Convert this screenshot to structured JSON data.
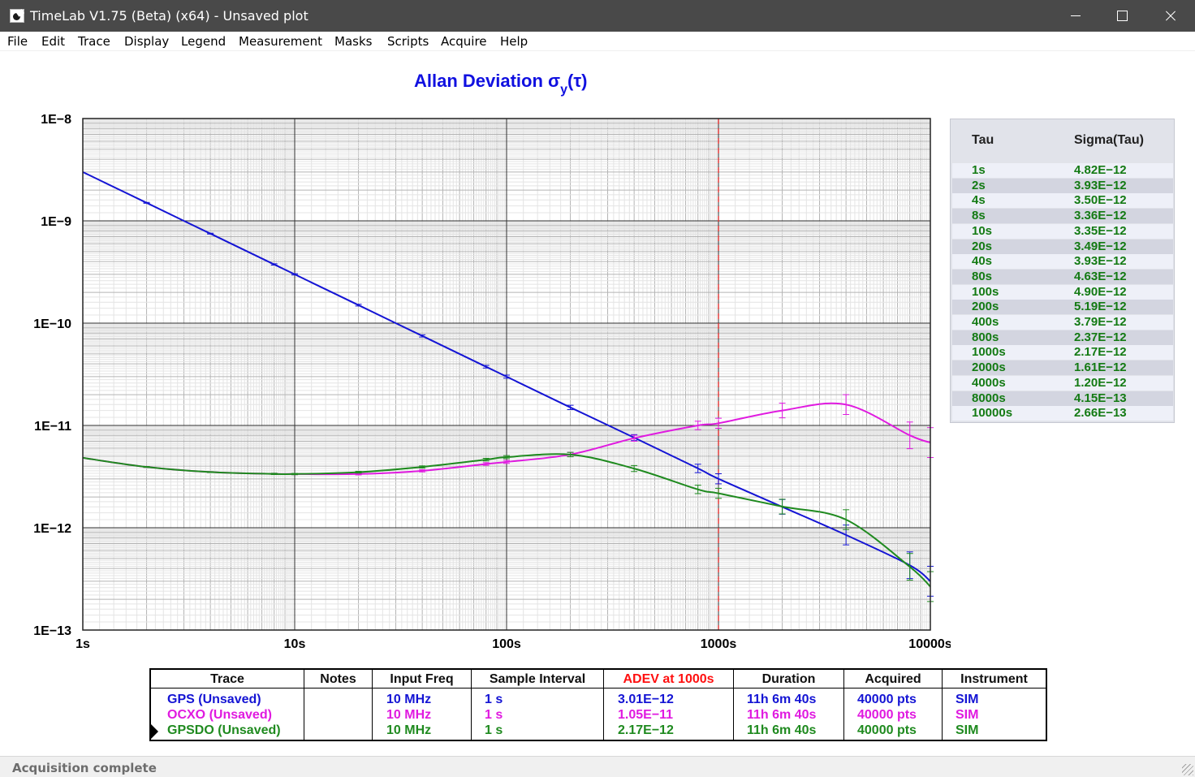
{
  "window": {
    "title": "TimeLab V1.75 (Beta) (x64) - Unsaved plot",
    "icon": "timelab-app-icon",
    "controls": [
      "minimize-icon",
      "maximize-icon",
      "close-icon"
    ]
  },
  "menu": [
    "File",
    "Edit",
    "Trace",
    "Display",
    "Legend",
    "Measurement",
    "Masks",
    "Scripts",
    "Acquire",
    "Help"
  ],
  "chart_data": {
    "type": "line",
    "title": "Allan Deviation σy(τ)",
    "title_main": "Allan Deviation σ",
    "title_sub": "y",
    "title_tail": "(τ)",
    "x_scale": "log",
    "y_scale": "log",
    "xlim": [
      1,
      10000
    ],
    "ylim": [
      1e-13,
      1e-08
    ],
    "x_ticks": [
      1,
      10,
      100,
      1000,
      10000
    ],
    "x_tick_labels": [
      "1s",
      "10s",
      "100s",
      "1000s",
      "10000s"
    ],
    "y_ticks": [
      1e-08,
      1e-09,
      1e-10,
      1e-11,
      1e-12,
      1e-13
    ],
    "y_tick_labels": [
      "1E−8",
      "1E−9",
      "1E−10",
      "1E−11",
      "1E−12",
      "1E−13"
    ],
    "grid": true,
    "marker_tau": 1000,
    "colors": {
      "title": "#1010e0",
      "GPS": "#1414d4",
      "OCXO": "#e01ae0",
      "GPSDO": "#1f8a1f",
      "marker": "#e03030"
    },
    "series": [
      {
        "name": "GPS (Unsaved)",
        "color": "#1414d4",
        "x": [
          1,
          2,
          4,
          8,
          10,
          20,
          40,
          80,
          100,
          200,
          400,
          800,
          1000,
          2000,
          4000,
          8000,
          10000
        ],
        "y": [
          3e-09,
          1.5e-09,
          7.5e-10,
          3.75e-10,
          3e-10,
          1.5e-10,
          7.5e-11,
          3.75e-11,
          3e-11,
          1.5e-11,
          7.6e-12,
          3.8e-12,
          3.01e-12,
          1.6e-12,
          8.5e-13,
          4.3e-13,
          3e-13
        ],
        "err": [
          0.0,
          0.01,
          0.01,
          0.015,
          0.015,
          0.02,
          0.025,
          0.03,
          0.035,
          0.05,
          0.07,
          0.1,
          0.12,
          0.18,
          0.25,
          0.35,
          0.4
        ]
      },
      {
        "name": "OCXO (Unsaved)",
        "color": "#e01ae0",
        "x": [
          1,
          2,
          4,
          8,
          10,
          20,
          40,
          80,
          100,
          200,
          400,
          800,
          1000,
          2000,
          4000,
          8000,
          10000
        ],
        "y": [
          4.82e-12,
          3.93e-12,
          3.5e-12,
          3.36e-12,
          3.35e-12,
          3.35e-12,
          3.6e-12,
          4.2e-12,
          4.4e-12,
          5.2e-12,
          7.5e-12,
          1e-11,
          1.05e-11,
          1.4e-11,
          1.6e-11,
          8e-12,
          6.8e-12
        ],
        "err": [
          0.0,
          0.01,
          0.01,
          0.015,
          0.015,
          0.02,
          0.025,
          0.03,
          0.035,
          0.05,
          0.07,
          0.1,
          0.12,
          0.18,
          0.25,
          0.35,
          0.4
        ]
      },
      {
        "name": "GPSDO (Unsaved)",
        "color": "#1f8a1f",
        "x": [
          1,
          2,
          4,
          8,
          10,
          20,
          40,
          80,
          100,
          200,
          400,
          800,
          1000,
          2000,
          4000,
          8000,
          10000
        ],
        "y": [
          4.82e-12,
          3.93e-12,
          3.5e-12,
          3.36e-12,
          3.35e-12,
          3.49e-12,
          3.93e-12,
          4.63e-12,
          4.9e-12,
          5.19e-12,
          3.79e-12,
          2.37e-12,
          2.17e-12,
          1.61e-12,
          1.2e-12,
          4.15e-13,
          2.66e-13
        ],
        "err": [
          0.0,
          0.01,
          0.01,
          0.015,
          0.015,
          0.02,
          0.025,
          0.03,
          0.035,
          0.05,
          0.07,
          0.1,
          0.12,
          0.18,
          0.25,
          0.35,
          0.4
        ]
      }
    ]
  },
  "sigma_table": {
    "header_tau": "Tau",
    "header_sigma": "Sigma(Tau)",
    "rows": [
      {
        "tau": "1s",
        "sigma": "4.82E−12"
      },
      {
        "tau": "2s",
        "sigma": "3.93E−12"
      },
      {
        "tau": "4s",
        "sigma": "3.50E−12"
      },
      {
        "tau": "8s",
        "sigma": "3.36E−12"
      },
      {
        "tau": "10s",
        "sigma": "3.35E−12"
      },
      {
        "tau": "20s",
        "sigma": "3.49E−12"
      },
      {
        "tau": "40s",
        "sigma": "3.93E−12"
      },
      {
        "tau": "80s",
        "sigma": "4.63E−12"
      },
      {
        "tau": "100s",
        "sigma": "4.90E−12"
      },
      {
        "tau": "200s",
        "sigma": "5.19E−12"
      },
      {
        "tau": "400s",
        "sigma": "3.79E−12"
      },
      {
        "tau": "800s",
        "sigma": "2.37E−12"
      },
      {
        "tau": "1000s",
        "sigma": "2.17E−12"
      },
      {
        "tau": "2000s",
        "sigma": "1.61E−12"
      },
      {
        "tau": "4000s",
        "sigma": "1.20E−12"
      },
      {
        "tau": "8000s",
        "sigma": "4.15E−13"
      },
      {
        "tau": "10000s",
        "sigma": "2.66E−13"
      }
    ]
  },
  "trace_table": {
    "headers": [
      "Trace",
      "Notes",
      "Input Freq",
      "Sample Interval",
      "ADEV at 1000s",
      "Duration",
      "Acquired",
      "Instrument"
    ],
    "adev_header_color": "#ff1010",
    "rows": [
      {
        "trace": "GPS (Unsaved)",
        "notes": "",
        "freq": "10 MHz",
        "interval": "1 s",
        "adev": "3.01E−12",
        "duration": "11h 6m 40s",
        "acquired": "40000 pts",
        "instrument": "SIM",
        "color": "#1414d4"
      },
      {
        "trace": "OCXO (Unsaved)",
        "notes": "",
        "freq": "10 MHz",
        "interval": "1 s",
        "adev": "1.05E−11",
        "duration": "11h 6m 40s",
        "acquired": "40000 pts",
        "instrument": "SIM",
        "color": "#e01ae0"
      },
      {
        "trace": "GPSDO (Unsaved)",
        "notes": "",
        "freq": "10 MHz",
        "interval": "1 s",
        "adev": "2.17E−12",
        "duration": "11h 6m 40s",
        "acquired": "40000 pts",
        "instrument": "SIM",
        "color": "#1f8a1f"
      }
    ]
  },
  "status": {
    "text": "Acquisition complete"
  }
}
